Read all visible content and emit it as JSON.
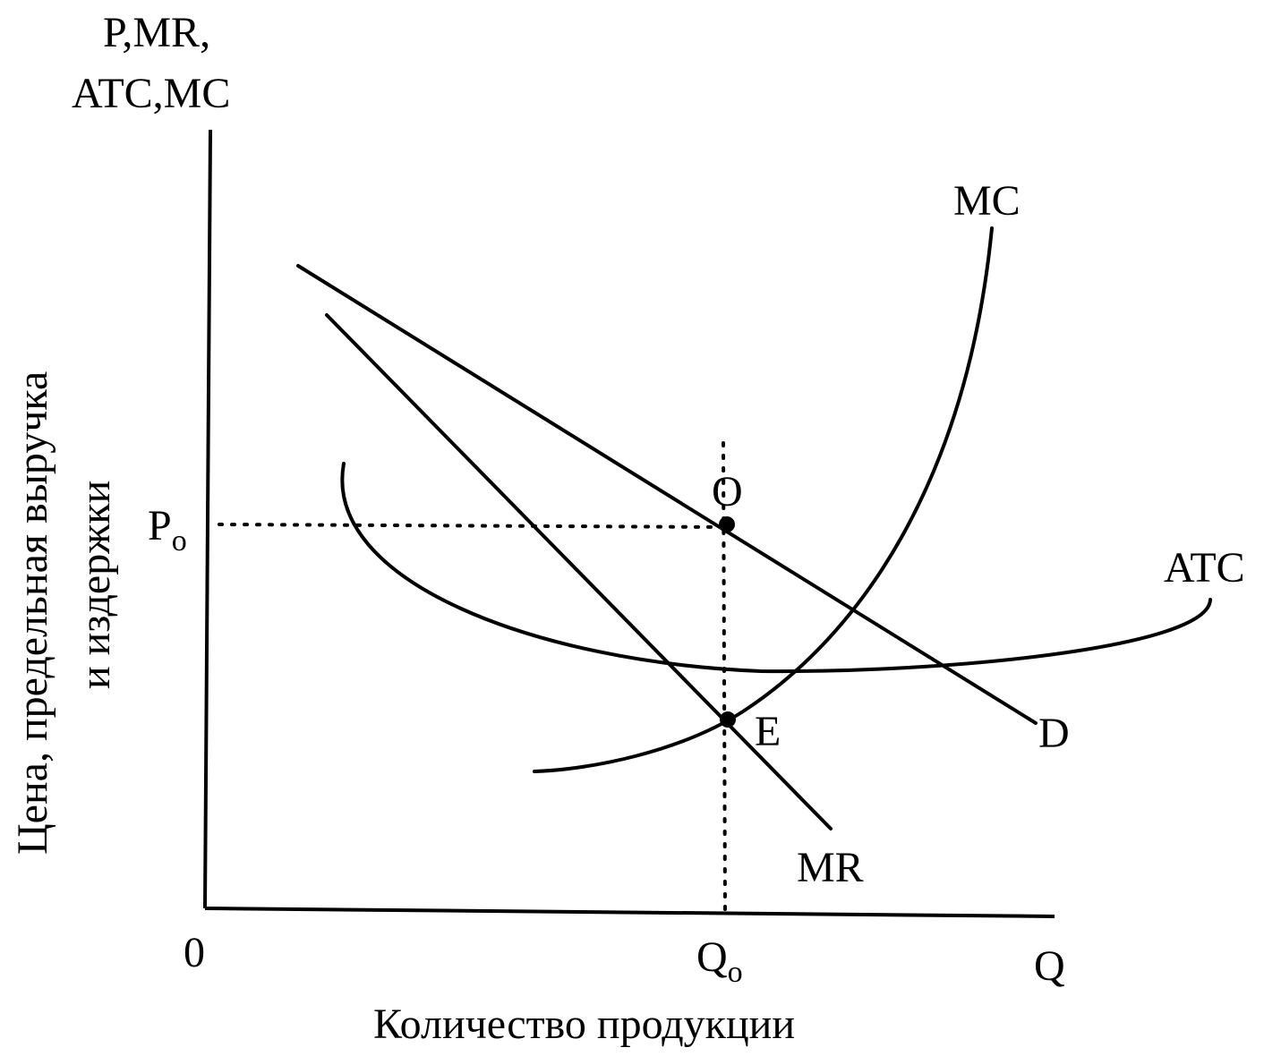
{
  "axes": {
    "y_label_top": "P,MR,",
    "y_label_bottom": "ATC,MC",
    "y_title_line1": "Цена, предельная выручка",
    "y_title_line2": "и издержки",
    "x_title": "Количество продукции",
    "origin": "0",
    "x_end": "Q"
  },
  "curves": {
    "mc": "MC",
    "atc": "ATC",
    "demand": "D",
    "mr": "MR"
  },
  "points": {
    "o": "O",
    "e": "E"
  },
  "ticks": {
    "p0_base": "P",
    "p0_sub": "o",
    "q0_base": "Q",
    "q0_sub": "o"
  }
}
